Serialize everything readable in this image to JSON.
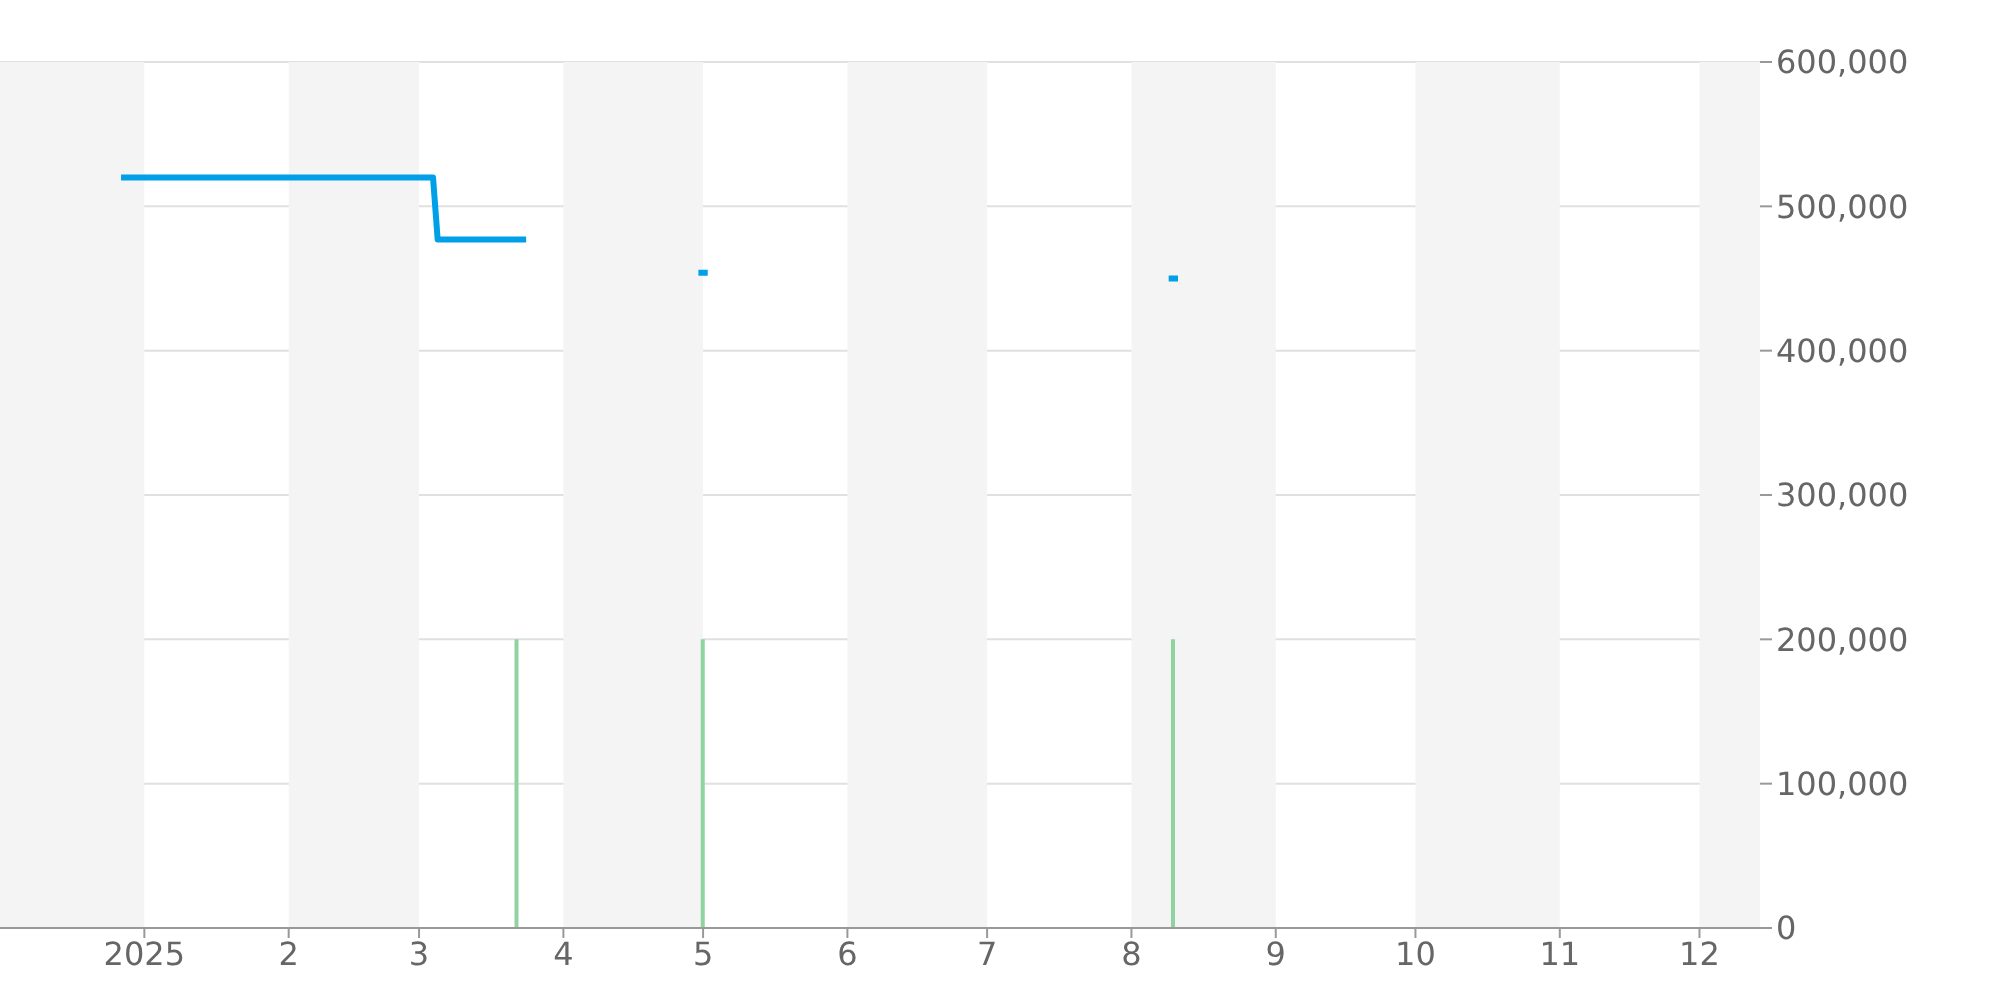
{
  "chart_data": {
    "type": "line",
    "series": [
      {
        "color": "#00a0e9",
        "x": [
          "2024-12-27",
          "2025-03-04",
          "2025-03-05",
          "2025-03-24",
          "2025-04-10",
          "2025-04-30",
          "2025-05-02",
          "2025-06-15",
          "2025-08-09",
          "2025-08-11"
        ],
        "values": [
          520000,
          520000,
          477000,
          477000,
          null,
          454000,
          454000,
          null,
          450000,
          450000
        ]
      },
      {
        "type": "bar",
        "color": "#8fd4a0",
        "x": [
          "2025-03-22",
          "2025-05-01",
          "2025-08-10"
        ],
        "values": [
          200000,
          200000,
          200000
        ]
      }
    ],
    "xlim": [
      "2024-12-01",
      "2025-12-14"
    ],
    "xticks": [
      {
        "value": "2025-01-01",
        "label": "2025"
      },
      {
        "value": "2025-02-01",
        "label": "2"
      },
      {
        "value": "2025-03-01",
        "label": "3"
      },
      {
        "value": "2025-04-01",
        "label": "4"
      },
      {
        "value": "2025-05-01",
        "label": "5"
      },
      {
        "value": "2025-06-01",
        "label": "6"
      },
      {
        "value": "2025-07-01",
        "label": "7"
      },
      {
        "value": "2025-08-01",
        "label": "8"
      },
      {
        "value": "2025-09-01",
        "label": "9"
      },
      {
        "value": "2025-10-01",
        "label": "10"
      },
      {
        "value": "2025-11-01",
        "label": "11"
      },
      {
        "value": "2025-12-01",
        "label": "12"
      }
    ],
    "ylim": [
      0,
      600000
    ],
    "yticks": [
      0,
      {
        "value": 100000,
        "label": "100,000"
      },
      {
        "value": 200000,
        "label": "200,000"
      },
      {
        "value": 300000,
        "label": "300,000"
      },
      {
        "value": 400000,
        "label": "400,000"
      },
      {
        "value": 500000,
        "label": "500,000"
      },
      {
        "value": 600000,
        "label": "600,000"
      }
    ],
    "grid": "y",
    "bands": [
      {
        "axis": "x",
        "from": "2024-12-01",
        "to": "2025-01-01",
        "color": "#f4f4f4"
      },
      {
        "axis": "x",
        "from": "2025-02-01",
        "to": "2025-03-01",
        "color": "#f4f4f4"
      },
      {
        "axis": "x",
        "from": "2025-04-01",
        "to": "2025-05-01",
        "color": "#f4f4f4"
      },
      {
        "axis": "x",
        "from": "2025-06-01",
        "to": "2025-07-01",
        "color": "#f4f4f4"
      },
      {
        "axis": "x",
        "from": "2025-08-01",
        "to": "2025-09-01",
        "color": "#f4f4f4"
      },
      {
        "axis": "x",
        "from": "2025-10-01",
        "to": "2025-11-01",
        "color": "#f4f4f4"
      },
      {
        "axis": "x",
        "from": "2025-12-01",
        "to": "2025-12-14",
        "color": "#f4f4f4"
      }
    ]
  }
}
